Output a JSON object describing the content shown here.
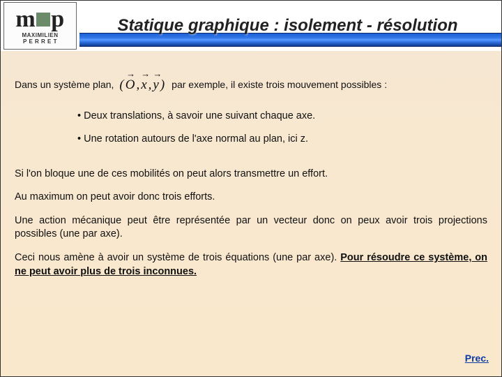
{
  "header": {
    "logo": {
      "line1": "MAXIMILIEN",
      "line2": "P E R R E T",
      "letter1": "m",
      "letter2": "p"
    },
    "title": "Statique graphique : isolement - résolution"
  },
  "intro": {
    "before": "Dans un système plan,",
    "equation_parts": {
      "open": "(",
      "o": "O",
      "c1": ",",
      "x": "x",
      "c2": ",",
      "y": "y",
      "close": ")"
    },
    "after": " par exemple, il existe trois mouvement possibles :"
  },
  "bullets": [
    "Deux translations, à savoir une suivant chaque axe.",
    "Une rotation autours de l'axe normal au plan, ici z."
  ],
  "paragraphs": {
    "p1": "Si l'on bloque une de ces mobilités on peut alors transmettre un effort.",
    "p2": "Au maximum on peut avoir donc trois efforts.",
    "p3": "Une action mécanique peut être représentée par un vecteur donc on peux avoir trois projections possibles (une par axe).",
    "p4a": "Ceci nous amène à avoir un système de trois équations (une par axe). ",
    "p4b": "Pour résoudre ce système, on ne peut avoir plus de trois inconnues."
  },
  "nav": {
    "prev": "Prec."
  },
  "colors": {
    "accent_blue": "#1a5fd4",
    "link": "#0b3aa5",
    "bg_top": "#f5e6d3",
    "bg_bottom": "#fae8cc"
  }
}
